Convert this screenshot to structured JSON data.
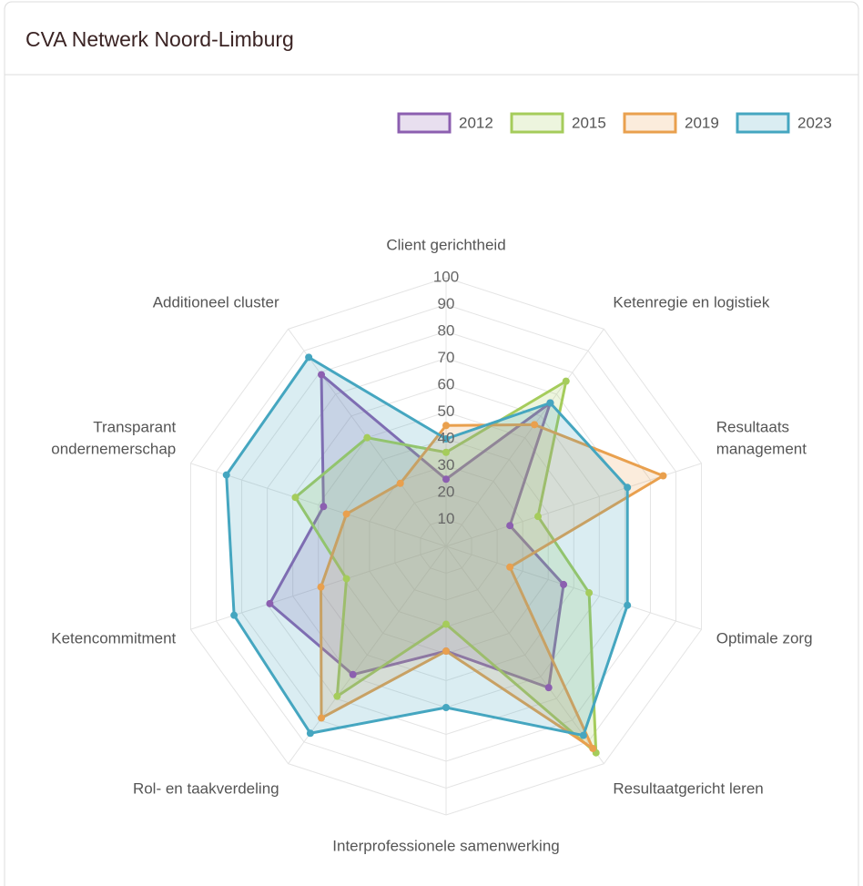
{
  "chart_data": {
    "type": "radar",
    "title": "CVA Netwerk Noord-Limburg",
    "categories": [
      [
        "Client gerichtheid"
      ],
      [
        "Ketenregie en logistiek"
      ],
      [
        "Resultaats",
        "management"
      ],
      [
        "Optimale zorg"
      ],
      [
        "Resultaatgericht leren"
      ],
      [
        "Interprofessionele samenwerking"
      ],
      [
        "Rol- en taakverdeling"
      ],
      [
        "Ketencommitment"
      ],
      [
        "Transparant",
        "ondernemerschap"
      ],
      [
        "Additioneel cluster"
      ]
    ],
    "series": [
      {
        "name": "2012",
        "color": "#8c5fb0",
        "values": [
          25,
          66,
          25,
          46,
          65,
          39,
          59,
          69,
          48,
          79
        ]
      },
      {
        "name": "2015",
        "color": "#a5cc5b",
        "values": [
          35,
          76,
          36,
          56,
          95,
          29,
          69,
          39,
          59,
          50
        ]
      },
      {
        "name": "2019",
        "color": "#e9a04e",
        "values": [
          45,
          56,
          85,
          25,
          93,
          39,
          79,
          49,
          39,
          29
        ]
      },
      {
        "name": "2023",
        "color": "#45a6c0",
        "values": [
          40,
          66,
          71,
          71,
          87,
          60,
          86,
          83,
          86,
          87
        ]
      }
    ],
    "rlim": [
      0,
      100
    ],
    "rticks": [
      10,
      20,
      30,
      40,
      50,
      60,
      70,
      80,
      90,
      100
    ],
    "grid": true,
    "legend": "top-right"
  }
}
